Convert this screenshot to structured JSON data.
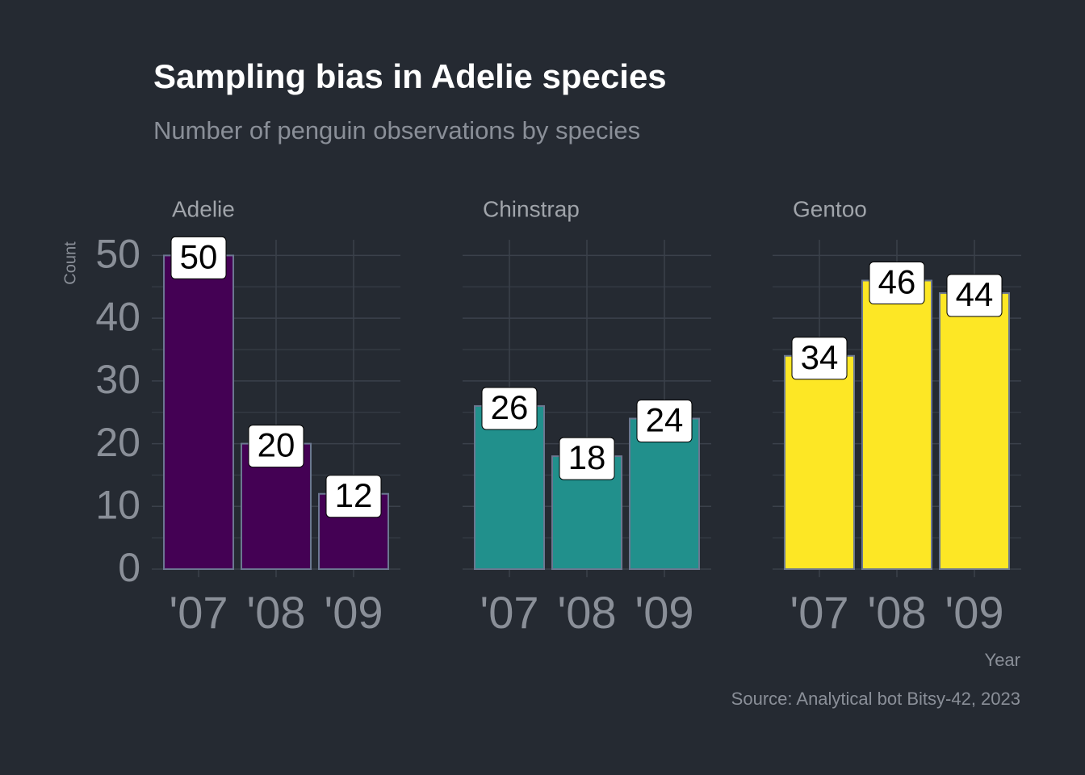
{
  "chart_data": {
    "type": "bar",
    "title": "Sampling bias in Adelie species",
    "subtitle": "Number of penguin observations by species",
    "y_label": "Count",
    "x_label": "Year",
    "caption": "Source: Analytical bot Bitsy-42, 2023",
    "categories": [
      "'07",
      "'08",
      "'09"
    ],
    "series": [
      {
        "name": "Adelie",
        "color": "#440154",
        "values": [
          50,
          20,
          12
        ]
      },
      {
        "name": "Chinstrap",
        "color": "#21908c",
        "values": [
          26,
          18,
          24
        ]
      },
      {
        "name": "Gentoo",
        "color": "#fde725",
        "values": [
          34,
          46,
          44
        ]
      }
    ],
    "ylim": [
      0,
      52.5
    ],
    "yticks": [
      0,
      10,
      20,
      30,
      40,
      50
    ],
    "yminorticks": [
      5,
      15,
      25,
      35,
      45
    ],
    "grid": true
  }
}
